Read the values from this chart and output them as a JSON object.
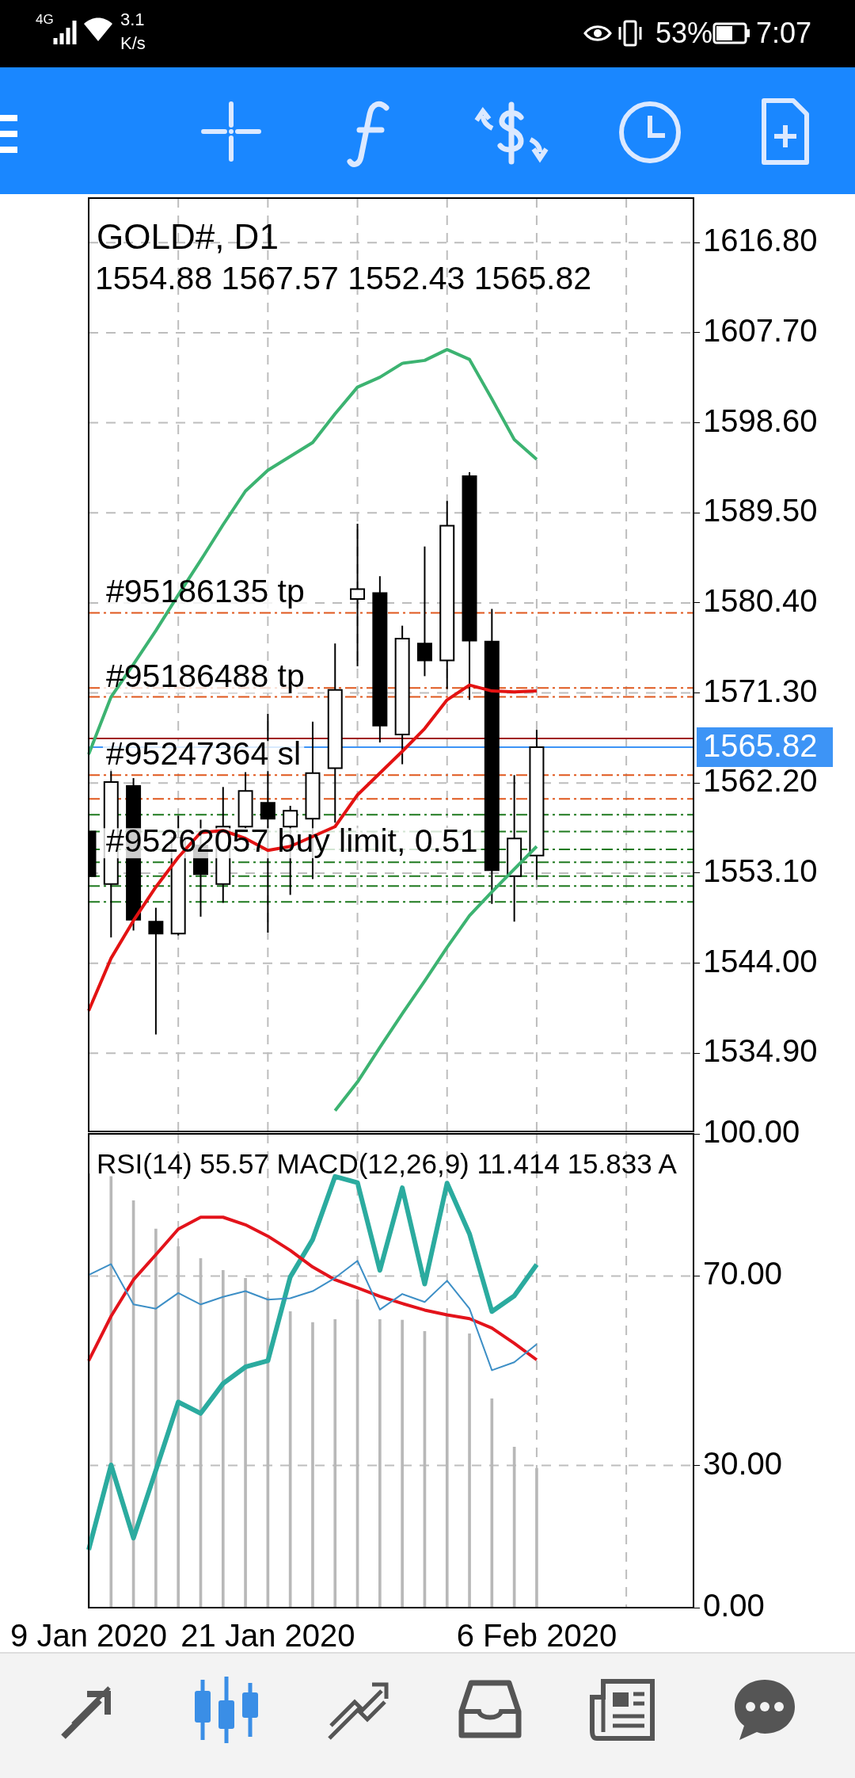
{
  "chart_data": [
    {
      "type": "candlestick",
      "title": "GOLD#, D1",
      "subtitle": "1554.88 1567.57 1552.43 1565.82",
      "annotations": [
        "4G",
        "3.1",
        "K/s",
        "53%",
        "7:07"
      ],
      "categories": [
        null,
        null,
        null,
        null,
        null,
        null,
        null,
        null,
        null,
        null,
        null,
        null,
        null,
        null,
        null,
        null,
        null,
        null,
        null,
        null,
        null,
        null,
        null,
        null,
        null,
        null,
        null,
        null
      ],
      "ohlc": [
        [
          1557.3,
          1559.4,
          1551.4,
          1552.8
        ],
        [
          1552.0,
          1563.6,
          1546.6,
          1562.3
        ],
        [
          1561.9,
          1562.7,
          1547.3,
          1548.4
        ],
        [
          1548.2,
          1549.6,
          1536.8,
          1547.0
        ],
        [
          1547.0,
          1558.9,
          1546.8,
          1556.7
        ],
        [
          1555.9,
          1558.5,
          1548.7,
          1553.0
        ],
        [
          1552.0,
          1561.8,
          1550.1,
          1557.8
        ],
        [
          1557.8,
          1563.3,
          1557.6,
          1561.4
        ],
        [
          1560.2,
          1569.2,
          1547.1,
          1558.6
        ],
        [
          1557.8,
          1559.9,
          1550.9,
          1559.4
        ],
        [
          1558.6,
          1568.4,
          1552.5,
          1563.2
        ],
        [
          1563.7,
          1576.3,
          1558.2,
          1571.6
        ],
        [
          1580.8,
          1588.4,
          1574.0,
          1581.8
        ],
        [
          1581.4,
          1583.1,
          1566.3,
          1568.0
        ],
        [
          1567.1,
          1578.1,
          1564.1,
          1576.8
        ],
        [
          1576.3,
          1586.1,
          1573.0,
          1574.6
        ],
        [
          1574.6,
          1590.7,
          1571.7,
          1588.2
        ],
        [
          1593.2,
          1593.6,
          1570.6,
          1576.6
        ],
        [
          1576.5,
          1579.8,
          1550.0,
          1553.4
        ],
        [
          1552.8,
          1563.0,
          1548.2,
          1556.6
        ],
        [
          1554.88,
          1567.57,
          1552.43,
          1565.82
        ],
        null,
        null,
        null,
        null,
        null,
        null,
        null
      ],
      "series": [
        {
          "type": "line",
          "color": "#3cb371",
          "values": [
            1565.1,
            1570.9,
            1574.2,
            1577.6,
            1581.2,
            1584.7,
            1588.3,
            1591.7,
            1593.8,
            1595.2,
            1596.6,
            1599.5,
            1602.2,
            1603.2,
            1604.6,
            1604.9,
            1606.0,
            1605.0,
            1601.0,
            1596.9,
            1594.9,
            null,
            null,
            null,
            null,
            null,
            null,
            null
          ]
        },
        {
          "type": "line",
          "color": "#e31212",
          "values": [
            1539.2,
            1544.5,
            1548.3,
            1551.7,
            1554.7,
            1557.2,
            1557.4,
            1556.6,
            1555.4,
            1555.8,
            1556.8,
            1557.8,
            1561.0,
            1563.2,
            1565.4,
            1567.7,
            1570.6,
            1572.1,
            1571.5,
            1571.4,
            1571.5,
            null,
            null,
            null,
            null,
            null,
            null,
            null
          ]
        },
        {
          "type": "line",
          "color": "#3cb371",
          "values": [
            null,
            null,
            null,
            null,
            null,
            null,
            null,
            null,
            null,
            null,
            null,
            1529.1,
            1532.0,
            1535.5,
            1538.9,
            1542.2,
            1545.6,
            1548.8,
            1551.2,
            1553.5,
            1555.8,
            null,
            null,
            null,
            null,
            null,
            null,
            null
          ]
        }
      ],
      "ylim": [
        1527.0,
        1621.3
      ],
      "yticks": [
        {
          "value": 1534.9,
          "label": "1534.90"
        },
        {
          "value": 1544,
          "label": "1544.00"
        },
        {
          "value": 1553.1,
          "label": "1553.10"
        },
        {
          "value": 1562.2,
          "label": "1562.20"
        },
        {
          "value": 1571.3,
          "label": "1571.30"
        },
        {
          "value": 1580.4,
          "label": "1580.40"
        },
        {
          "value": 1589.5,
          "label": "1589.50"
        },
        {
          "value": 1598.6,
          "label": "1598.60"
        },
        {
          "value": 1607.7,
          "label": "1607.70"
        },
        {
          "value": 1616.8,
          "label": "1616.80"
        }
      ],
      "ref_lines": [
        {
          "axis": "y",
          "value": 1579.4,
          "label": "#95186135 tp",
          "color": "#e0581e",
          "line_style": "dashed"
        },
        {
          "axis": "y",
          "value": 1571.8,
          "color": "#e0581e",
          "line_style": "dashed"
        },
        {
          "axis": "y",
          "value": 1570.9,
          "label": "#95186488 tp",
          "color": "#e0581e",
          "line_style": "dashed"
        },
        {
          "axis": "y",
          "value": 1566.7,
          "color": "#a01818",
          "line_style": "solid"
        },
        {
          "axis": "y",
          "value": 1565.82,
          "label": "1565.82",
          "color": "#3d94f6",
          "line_style": "solid"
        },
        {
          "axis": "y",
          "value": 1563.0,
          "label": "#95247364 sl",
          "color": "#e0581e",
          "line_style": "dashed"
        },
        {
          "axis": "y",
          "value": 1560.6,
          "color": "#e0581e",
          "line_style": "dashed"
        },
        {
          "axis": "y",
          "value": 1559.0,
          "color": "#1f7a1f",
          "line_style": "dashed"
        },
        {
          "axis": "y",
          "value": 1557.3,
          "color": "#1f7a1f",
          "line_style": "dashed"
        },
        {
          "axis": "y",
          "value": 1555.5,
          "color": "#1f7a1f",
          "line_style": "dashed"
        },
        {
          "axis": "y",
          "value": 1554.2,
          "label": "#95262057 buy limit, 0.51",
          "color": "#1f7a1f",
          "line_style": "dashed"
        },
        {
          "axis": "y",
          "value": 1552.8,
          "color": "#1f7a1f",
          "line_style": "dashed"
        },
        {
          "axis": "y",
          "value": 1551.8,
          "color": "#1f7a1f",
          "line_style": "dashed"
        },
        {
          "axis": "y",
          "value": 1550.2,
          "color": "#1f7a1f",
          "line_style": "dashed"
        }
      ],
      "tick_labels": "y",
      "grid": true
    },
    {
      "type": "line",
      "title": "RSI(14) 55.57 MACD(12,26,9) 11.414 15.833 A",
      "categories": [
        "9 Jan 2020",
        null,
        null,
        null,
        null,
        null,
        null,
        null,
        "21 Jan 2020",
        null,
        null,
        null,
        null,
        null,
        null,
        null,
        null,
        null,
        null,
        null,
        "6 Feb 2020",
        null,
        null,
        null,
        null,
        null,
        null,
        null
      ],
      "series": [
        {
          "type": "bar",
          "color": "#b8b8b8",
          "values": [
            91.6,
            91.0,
            85.9,
            79.9,
            76.2,
            73.7,
            71.2,
            69.5,
            65.5,
            62.5,
            60.2,
            60.8,
            65.0,
            60.8,
            60.7,
            58.3,
            61.5,
            57.8,
            44.1,
            33.9,
            29.4,
            null,
            null,
            null,
            null,
            null,
            null,
            null
          ]
        },
        {
          "type": "line",
          "color": "#3d8fc6",
          "values": [
            70.2,
            72.5,
            64.0,
            63.1,
            66.4,
            64.0,
            65.6,
            66.8,
            65.0,
            65.3,
            66.8,
            69.6,
            73.2,
            62.9,
            66.2,
            64.5,
            69.0,
            63.1,
            50.1,
            51.8,
            55.6,
            null,
            null,
            null,
            null,
            null,
            null,
            null
          ]
        },
        {
          "type": "line",
          "color": "#e3131b",
          "values": [
            52.1,
            61.5,
            69.2,
            74.5,
            79.9,
            82.4,
            82.4,
            80.8,
            78.4,
            75.4,
            71.9,
            69.2,
            67.5,
            65.7,
            64.2,
            62.8,
            61.8,
            61.0,
            59.0,
            55.8,
            52.3,
            null,
            null,
            null,
            null,
            null,
            null,
            null
          ]
        },
        {
          "type": "line",
          "color": "#2bab9f",
          "values": [
            12.2,
            30.1,
            14.7,
            29.0,
            43.4,
            41.0,
            47.3,
            50.8,
            52.1,
            69.8,
            77.7,
            91.0,
            89.7,
            71.2,
            88.6,
            68.3,
            89.6,
            78.9,
            62.5,
            65.8,
            72.4,
            null,
            null,
            null,
            null,
            null,
            null,
            null
          ]
        }
      ],
      "ylim": [
        0,
        100
      ],
      "yticks": [
        {
          "value": 0,
          "label": "0.00"
        },
        {
          "value": 30,
          "label": "30.00"
        },
        {
          "value": 70,
          "label": "70.00"
        },
        {
          "value": 100,
          "label": "100.00"
        }
      ],
      "grid": true
    }
  ]
}
